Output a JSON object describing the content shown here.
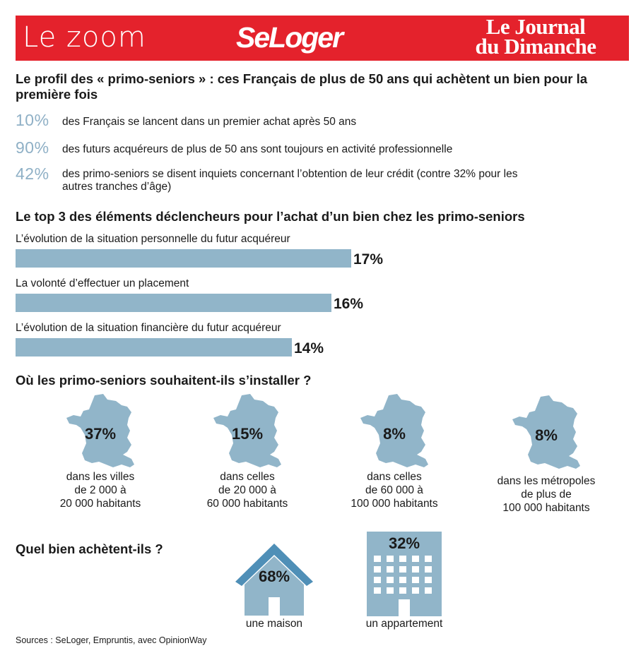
{
  "header": {
    "section": "Le zoom",
    "brand": "SeLoger",
    "newspaper_line1": "Le Journal",
    "newspaper_line2": "du Dimanche"
  },
  "profile": {
    "title": "Le profil des « primo-seniors » : ces Français de plus de 50 ans qui achètent un bien pour la première fois",
    "stats": [
      {
        "value": "10%",
        "text": "des Français se lancent dans un premier achat après 50 ans"
      },
      {
        "value": "90%",
        "text": "des futurs acquéreurs de plus de 50 ans sont toujours en activité professionnelle"
      },
      {
        "value": "42%",
        "text": "des primo-seniors se disent inquiets concernant l’obtention de leur crédit (contre 32% pour les autres tranches d’âge)"
      }
    ]
  },
  "triggers": {
    "title": "Le top 3 des éléments déclencheurs pour l’achat d’un bien chez les primo-seniors"
  },
  "location": {
    "title": "Où les primo-seniors souhaitent-ils s’installer ?"
  },
  "property": {
    "title": "Quel bien achètent-ils ?",
    "house_value": "68%",
    "house_label": "une maison",
    "flat_value": "32%",
    "flat_label": "un appartement"
  },
  "source": "Sources : SeLoger, Empruntis, avec OpinionWay",
  "colors": {
    "header_red": "#e4222c",
    "bar_blue": "#91b5c9",
    "stat_blue": "#8fb0c6",
    "roof_blue": "#4f8fb7"
  },
  "chart_data": [
    {
      "type": "bar",
      "orientation": "horizontal",
      "title": "Le top 3 des éléments déclencheurs pour l’achat d’un bien chez les primo-seniors",
      "categories": [
        "L’évolution de la situation personnelle du futur acquéreur",
        "La volonté d’effectuer un placement",
        "L’évolution de la situation financière du futur acquéreur"
      ],
      "values": [
        17,
        16,
        14
      ],
      "labels": [
        "17%",
        "16%",
        "14%"
      ],
      "unit": "%"
    },
    {
      "type": "pictogram",
      "title": "Où les primo-seniors souhaitent-ils s’installer ?",
      "values": [
        37,
        15,
        8,
        8
      ],
      "labels": [
        "37%",
        "15%",
        "8%",
        "8%"
      ],
      "categories": [
        "dans les villes de 2 000 à 20 000 habitants",
        "dans celles de 20 000 à 60 000 habitants",
        "dans celles de 60 000 à 100 000 habitants",
        "dans les métropoles de plus de 100 000 habitants"
      ],
      "caption_lines": [
        [
          "dans les villes",
          "de 2 000 à",
          "20 000 habitants"
        ],
        [
          "dans celles",
          "de 20 000 à",
          "60 000 habitants"
        ],
        [
          "dans celles",
          "de 60 000 à",
          "100 000 habitants"
        ],
        [
          "dans les métropoles",
          "de plus de",
          "100 000 habitants"
        ]
      ],
      "unit": "%"
    },
    {
      "type": "pictogram",
      "title": "Quel bien achètent-ils ?",
      "categories": [
        "une maison",
        "un appartement"
      ],
      "values": [
        68,
        32
      ],
      "labels": [
        "68%",
        "32%"
      ],
      "unit": "%"
    }
  ]
}
